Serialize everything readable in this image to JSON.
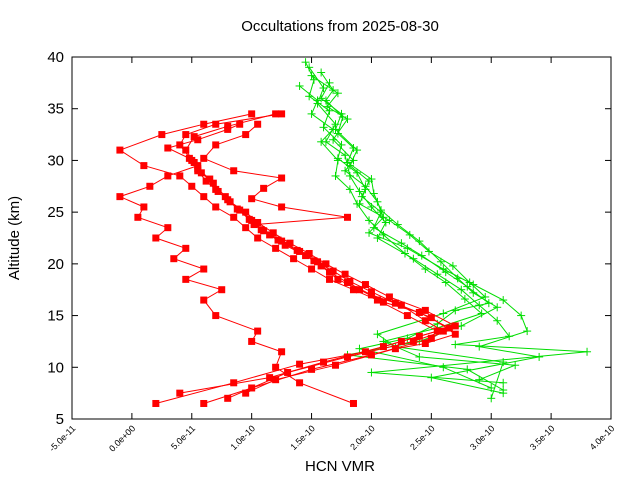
{
  "chart_data": {
    "type": "line",
    "title": "Occultations from 2025-08-30",
    "xlabel": "HCN VMR",
    "ylabel": "Altitude (km)",
    "xlim": [
      -5e-11,
      4e-10
    ],
    "ylim": [
      5,
      40
    ],
    "grid": false,
    "legend": "none",
    "x_ticks": [
      "-5.0e-11",
      "0.0e+00",
      "5.0e-11",
      "1.0e-10",
      "1.5e-10",
      "2.0e-10",
      "2.5e-10",
      "3.0e-10",
      "3.5e-10",
      "4.0e-10"
    ],
    "y_ticks": [
      "5",
      "10",
      "15",
      "20",
      "25",
      "30",
      "35",
      "40"
    ],
    "series": [
      {
        "color": "#00dd00",
        "marker": "plus",
        "profiles": [
          {
            "x": [
              1.5e-10,
              1.72e-10,
              1.63e-10,
              1.8e-10,
              1.68e-10,
              1.85e-10,
              1.78e-10,
              1.95e-10,
              2.05e-10,
              2.1e-10,
              1.98e-10,
              2.3e-10,
              2.6e-10,
              2.85e-10,
              3.1e-10,
              3.25e-10,
              3.3e-10,
              2.9e-10,
              3.4e-10,
              2.5e-10,
              3.1e-10
            ],
            "y": [
              38.2,
              36.5,
              35.2,
              34.0,
              32.0,
              30.0,
              29.0,
              27.5,
              26.0,
              24.5,
              23.0,
              21.5,
              19.5,
              18.0,
              16.5,
              15.0,
              13.5,
              12.0,
              11.0,
              9.0,
              7.5
            ]
          },
          {
            "x": [
              1.48e-10,
              1.6e-10,
              1.55e-10,
              1.7e-10,
              1.62e-10,
              1.78e-10,
              1.82e-10,
              1.9e-10,
              2e-10,
              2.12e-10,
              2.05e-10,
              2.35e-10,
              2.55e-10,
              2.75e-10,
              2.9e-10,
              3.05e-10,
              3.15e-10,
              2.7e-10,
              3.8e-10,
              2e-10,
              3.1e-10
            ],
            "y": [
              39.0,
              37.0,
              35.5,
              33.5,
              31.8,
              30.5,
              28.5,
              27.0,
              25.5,
              24.0,
              22.5,
              20.5,
              19.0,
              17.5,
              16.0,
              14.5,
              13.0,
              12.2,
              11.5,
              9.5,
              8.5
            ]
          },
          {
            "x": [
              1.65e-10,
              1.58e-10,
              1.75e-10,
              1.7e-10,
              1.88e-10,
              1.82e-10,
              1.98e-10,
              1.92e-10,
              2.08e-10,
              2.02e-10,
              2.25e-10,
              2.42e-10,
              2.62e-10,
              2.8e-10,
              2.98e-10,
              2.7e-10,
              2.55e-10,
              2.3e-10,
              1.9e-10,
              2.6e-10,
              3e-10
            ],
            "y": [
              37.5,
              36.0,
              34.5,
              33.0,
              31.0,
              29.5,
              28.0,
              26.5,
              25.0,
              23.5,
              22.0,
              20.8,
              19.2,
              17.8,
              16.2,
              15.5,
              14.2,
              12.8,
              11.8,
              10.0,
              8.0
            ]
          },
          {
            "x": [
              1.45e-10,
              1.52e-10,
              1.48e-10,
              1.65e-10,
              1.6e-10,
              1.75e-10,
              1.72e-10,
              1.88e-10,
              1.95e-10,
              1.9e-10,
              2.15e-10,
              2.32e-10,
              2.48e-10,
              2.68e-10,
              2.82e-10,
              2.95e-10,
              2.6e-10,
              2.05e-10,
              2.2e-10,
              3.1e-10,
              3e-10
            ],
            "y": [
              39.5,
              37.8,
              36.2,
              34.8,
              33.2,
              31.5,
              30.2,
              28.8,
              27.2,
              25.8,
              24.2,
              22.8,
              21.2,
              19.8,
              18.2,
              16.8,
              15.2,
              13.2,
              12.0,
              10.5,
              7.0
            ]
          },
          {
            "x": [
              1.58e-10,
              1.68e-10,
              1.62e-10,
              1.76e-10,
              1.72e-10,
              1.85e-10,
              1.8e-10,
              2e-10,
              2.02e-10,
              2.08e-10,
              2.22e-10,
              2.4e-10,
              2.58e-10,
              2.72e-10,
              2.85e-10,
              3.05e-10,
              2.75e-10,
              2.4e-10,
              1.8e-10,
              2.8e-10,
              3.1e-10
            ],
            "y": [
              38.5,
              36.8,
              35.8,
              34.2,
              32.6,
              31.2,
              29.8,
              28.2,
              26.8,
              25.2,
              23.8,
              22.2,
              20.2,
              18.6,
              17.2,
              15.8,
              14.0,
              12.5,
              11.2,
              9.8,
              7.8
            ]
          },
          {
            "x": [
              1.4e-10,
              1.55e-10,
              1.5e-10,
              1.68e-10,
              1.58e-10,
              1.72e-10,
              1.7e-10,
              1.82e-10,
              1.88e-10,
              1.98e-10,
              2.1e-10,
              2.28e-10,
              2.45e-10,
              2.62e-10,
              2.78e-10,
              2.92e-10,
              2.55e-10,
              2.1e-10,
              2.4e-10,
              3.2e-10,
              2.9e-10
            ],
            "y": [
              37.2,
              35.8,
              34.5,
              33.0,
              31.8,
              30.0,
              28.5,
              27.2,
              25.8,
              24.2,
              22.8,
              21.0,
              19.5,
              18.2,
              16.6,
              15.2,
              13.8,
              12.5,
              11.0,
              10.2,
              8.8
            ]
          }
        ]
      },
      {
        "color": "#ff0000",
        "marker": "square",
        "profiles": [
          {
            "x": [
              1.85e-10,
              1.4e-10,
              1.2e-10,
              1.25e-10,
              1e-10,
              1.05e-10,
              7e-11,
              6e-11,
              7.5e-11,
              4.5e-11,
              6e-11,
              3.5e-11,
              4.5e-11,
              2e-11,
              3e-11,
              5e-12,
              1e-11,
              -1e-11,
              1.5e-11,
              3e-11,
              5.5e-11
            ],
            "y": [
              6.5,
              8.5,
              10.0,
              11.5,
              12.5,
              13.5,
              15.0,
              16.5,
              17.5,
              18.5,
              19.5,
              20.5,
              21.5,
              22.5,
              23.5,
              24.5,
              25.5,
              26.5,
              27.5,
              28.5,
              29.5
            ]
          },
          {
            "x": [
              2e-11,
              8.5e-11,
              1.4e-10,
              1.95e-10,
              2.25e-10,
              2.55e-10,
              2.3e-10,
              2.05e-10,
              1.85e-10,
              1.65e-10,
              1.5e-10,
              1.35e-10,
              1.2e-10,
              1.05e-10,
              9.5e-11,
              8.5e-11,
              7e-11,
              6e-11,
              5e-11,
              4e-11,
              1e-11,
              -1e-11,
              2.5e-11,
              6e-11,
              1e-10
            ],
            "y": [
              6.5,
              8.5,
              10.3,
              11.5,
              12.5,
              13.5,
              15.0,
              16.5,
              17.5,
              18.5,
              19.5,
              20.5,
              21.5,
              22.5,
              23.5,
              24.5,
              25.5,
              26.5,
              27.5,
              28.5,
              29.5,
              31.0,
              32.5,
              33.5,
              34.5
            ]
          },
          {
            "x": [
              4e-11,
              1.15e-10,
              1.6e-10,
              2.1e-10,
              2.4e-10,
              2.7e-10,
              2.45e-10,
              2.15e-10,
              1.95e-10,
              1.78e-10,
              1.62e-10,
              1.48e-10,
              1.32e-10,
              1.18e-10,
              1.05e-10,
              9.5e-11,
              8.2e-11,
              7.2e-11,
              6.2e-11,
              5.5e-11,
              5e-11,
              4e-11,
              4.5e-11,
              7e-11,
              1.25e-10
            ],
            "y": [
              7.5,
              9.0,
              10.5,
              12.0,
              13.0,
              14.0,
              15.5,
              16.8,
              18.0,
              19.0,
              20.0,
              21.0,
              22.0,
              23.0,
              24.0,
              25.0,
              26.0,
              27.0,
              28.0,
              29.0,
              30.0,
              31.5,
              32.5,
              33.5,
              34.5
            ]
          },
          {
            "x": [
              8e-11,
              1.3e-10,
              1.8e-10,
              2.35e-10,
              2.6e-10,
              2.45e-10,
              2.25e-10,
              2e-10,
              1.8e-10,
              1.65e-10,
              1.55e-10,
              1.4e-10,
              1.25e-10,
              1.1e-10,
              1e-10,
              9e-11,
              8e-11,
              7e-11,
              6.5e-11,
              5.5e-11,
              4.8e-11,
              3e-11,
              5.5e-11,
              8e-11,
              9e-11
            ],
            "y": [
              7.0,
              9.5,
              11.0,
              12.5,
              13.5,
              14.5,
              16.0,
              17.0,
              18.2,
              19.2,
              20.2,
              21.2,
              22.2,
              23.2,
              24.2,
              25.2,
              26.2,
              27.2,
              28.2,
              29.2,
              30.2,
              31.2,
              32.0,
              33.0,
              33.5
            ]
          },
          {
            "x": [
              6e-11,
              1e-10,
              1.5e-10,
              2e-10,
              2.5e-10,
              2.65e-10,
              2.4e-10,
              2.1e-10,
              1.9e-10,
              1.72e-10,
              1.58e-10,
              1.45e-10,
              1.28e-10,
              1.15e-10,
              1.02e-10,
              1.8e-10,
              1.25e-10,
              1e-10,
              1.1e-10,
              1.25e-10,
              8.5e-11,
              6e-11,
              7e-11,
              9.5e-11,
              1.05e-10
            ],
            "y": [
              6.5,
              8.0,
              9.8,
              11.2,
              12.8,
              13.8,
              15.3,
              16.3,
              17.5,
              18.5,
              19.8,
              20.8,
              21.8,
              22.8,
              23.8,
              24.5,
              25.5,
              26.3,
              27.3,
              28.3,
              29.0,
              30.2,
              31.5,
              32.5,
              33.5
            ]
          },
          {
            "x": [
              9.5e-11,
              1.2e-10,
              1.7e-10,
              2.2e-10,
              2.45e-10,
              2.7e-10,
              2.5e-10,
              2.2e-10,
              2e-10,
              1.82e-10,
              1.68e-10,
              1.52e-10,
              1.38e-10,
              1.22e-10,
              1.08e-10,
              9.8e-11,
              8.8e-11,
              7.8e-11,
              6.8e-11,
              5.8e-11,
              5.2e-11,
              4.5e-11,
              5.2e-11,
              8e-11,
              1.2e-10
            ],
            "y": [
              7.5,
              8.8,
              10.2,
              11.8,
              12.3,
              13.2,
              14.8,
              16.2,
              17.3,
              18.3,
              19.3,
              20.3,
              21.3,
              22.3,
              23.3,
              24.3,
              25.3,
              26.5,
              27.8,
              28.8,
              29.8,
              31.0,
              32.3,
              33.3,
              34.5
            ]
          }
        ]
      }
    ]
  }
}
